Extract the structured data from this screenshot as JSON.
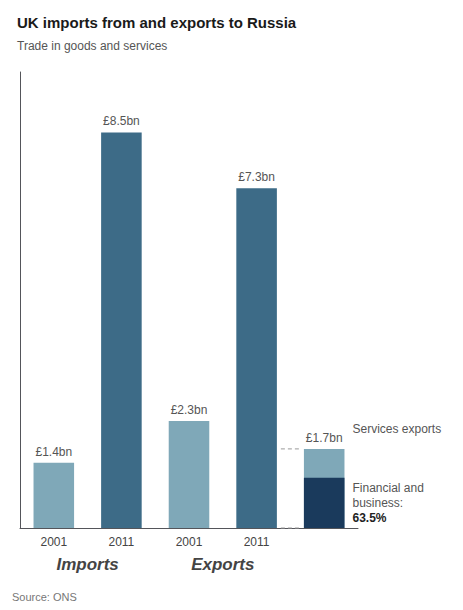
{
  "chart_data": {
    "type": "bar",
    "title": "UK imports from and exports to Russia",
    "subtitle": "Trade in goods and services",
    "source": "Source: ONS",
    "categories": [
      "2001",
      "2011",
      "2001",
      "2011",
      null
    ],
    "groups": [
      "Imports",
      "Imports",
      "Exports",
      "Exports",
      null
    ],
    "series": [
      {
        "values": [
          1.4,
          8.5,
          2.3,
          7.3,
          1.7
        ],
        "colors": [
          "#7fa8b8",
          "#3d6b87",
          "#7fa8b8",
          "#3d6b87",
          "#7fa8b8"
        ],
        "value_labels": [
          "£1.4bn",
          "£8.5bn",
          "£2.3bn",
          "£7.3bn",
          "£1.7bn"
        ],
        "data_labels": true
      },
      {
        "values": [
          null,
          null,
          null,
          null,
          1.08
        ],
        "color": "#1a3a5c",
        "data_labels": false
      }
    ],
    "annotations": [
      "Services exports",
      "Financial and",
      "business:",
      "63.5%"
    ],
    "ylim": [
      0,
      9.8
    ],
    "grid": false,
    "tick_labels": "x"
  }
}
